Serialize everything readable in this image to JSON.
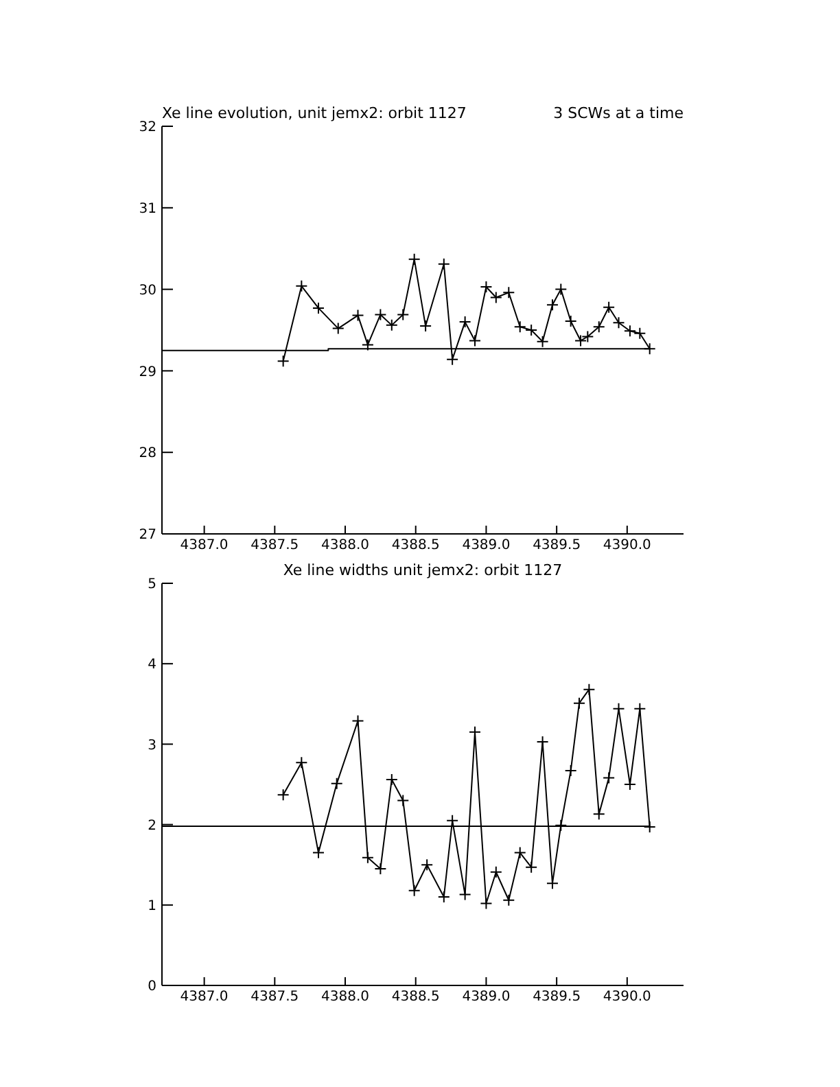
{
  "chart_data": [
    {
      "type": "line",
      "title": "Xe line evolution, unit jemx2: orbit 1127",
      "subtitle": "3 SCWs at a time",
      "xlim": [
        4386.7,
        4390.4
      ],
      "xticks": [
        {
          "value": 4387,
          "label": "4387.0"
        },
        {
          "value": 4387.5,
          "label": "4387.5"
        },
        {
          "value": 4388,
          "label": "4388.0"
        },
        {
          "value": 4388.5,
          "label": "4388.5"
        },
        {
          "value": 4389,
          "label": "4389.0"
        },
        {
          "value": 4389.5,
          "label": "4389.5"
        },
        {
          "value": 4390,
          "label": "4390.0"
        }
      ],
      "ylim": [
        27,
        32
      ],
      "yticks": [
        27,
        28,
        29,
        30,
        31,
        32
      ],
      "grid": false,
      "line_style": "solid",
      "series": [
        {
          "color": "#000000",
          "marker": "cross",
          "x": [
            4387.56,
            4387.69,
            4387.81,
            4387.95,
            4388.09,
            4388.16,
            4388.25,
            4388.33,
            4388.41,
            4388.49,
            4388.57,
            4388.7,
            4388.76,
            4388.85,
            4388.92,
            4389.0,
            4389.07,
            4389.16,
            4389.24,
            4389.32,
            4389.4,
            4389.47,
            4389.53,
            4389.6,
            4389.67,
            4389.72,
            4389.8,
            4389.87,
            4389.94,
            4390.02,
            4390.09,
            4390.16
          ],
          "values": [
            29.12,
            30.04,
            29.77,
            29.52,
            29.68,
            29.32,
            29.69,
            29.56,
            29.69,
            30.37,
            29.55,
            30.31,
            29.14,
            29.6,
            29.37,
            30.03,
            29.9,
            29.96,
            29.54,
            29.5,
            29.36,
            29.81,
            30.0,
            29.61,
            29.37,
            29.42,
            29.54,
            29.78,
            29.59,
            29.49,
            29.46,
            29.27
          ]
        },
        {
          "color": "#000000",
          "marker": "none",
          "x": [
            4386.7,
            4387.88,
            4387.88,
            4390.16
          ],
          "values": [
            29.25,
            29.25,
            29.27,
            29.27
          ]
        }
      ]
    },
    {
      "type": "line",
      "title": "Xe line widths unit jemx2: orbit 1127",
      "xlim": [
        4386.7,
        4390.4
      ],
      "xticks": [
        {
          "value": 4387,
          "label": "4387.0"
        },
        {
          "value": 4387.5,
          "label": "4387.5"
        },
        {
          "value": 4388,
          "label": "4388.0"
        },
        {
          "value": 4388.5,
          "label": "4388.5"
        },
        {
          "value": 4389,
          "label": "4389.0"
        },
        {
          "value": 4389.5,
          "label": "4389.5"
        },
        {
          "value": 4390,
          "label": "4390.0"
        }
      ],
      "ylim": [
        0,
        5
      ],
      "yticks": [
        0,
        1,
        2,
        3,
        4,
        5
      ],
      "grid": false,
      "line_style": "solid",
      "series": [
        {
          "color": "#000000",
          "marker": "cross",
          "x": [
            4387.56,
            4387.69,
            4387.81,
            4387.94,
            4388.09,
            4388.16,
            4388.25,
            4388.33,
            4388.41,
            4388.49,
            4388.58,
            4388.7,
            4388.76,
            4388.85,
            4388.92,
            4389.0,
            4389.07,
            4389.16,
            4389.24,
            4389.32,
            4389.4,
            4389.47,
            4389.53,
            4389.6,
            4389.66,
            4389.73,
            4389.8,
            4389.87,
            4389.94,
            4390.02,
            4390.09,
            4390.16
          ],
          "values": [
            2.37,
            2.77,
            1.65,
            2.51,
            3.29,
            1.59,
            1.45,
            2.56,
            2.3,
            1.18,
            1.5,
            1.1,
            2.05,
            1.13,
            3.15,
            1.02,
            1.41,
            1.06,
            1.65,
            1.47,
            3.03,
            1.27,
            1.99,
            2.67,
            3.51,
            3.68,
            2.13,
            2.58,
            3.44,
            2.5,
            3.44,
            1.97
          ]
        },
        {
          "color": "#000000",
          "marker": "none",
          "x": [
            4386.7,
            4390.16
          ],
          "values": [
            1.98,
            1.98
          ]
        }
      ]
    }
  ]
}
